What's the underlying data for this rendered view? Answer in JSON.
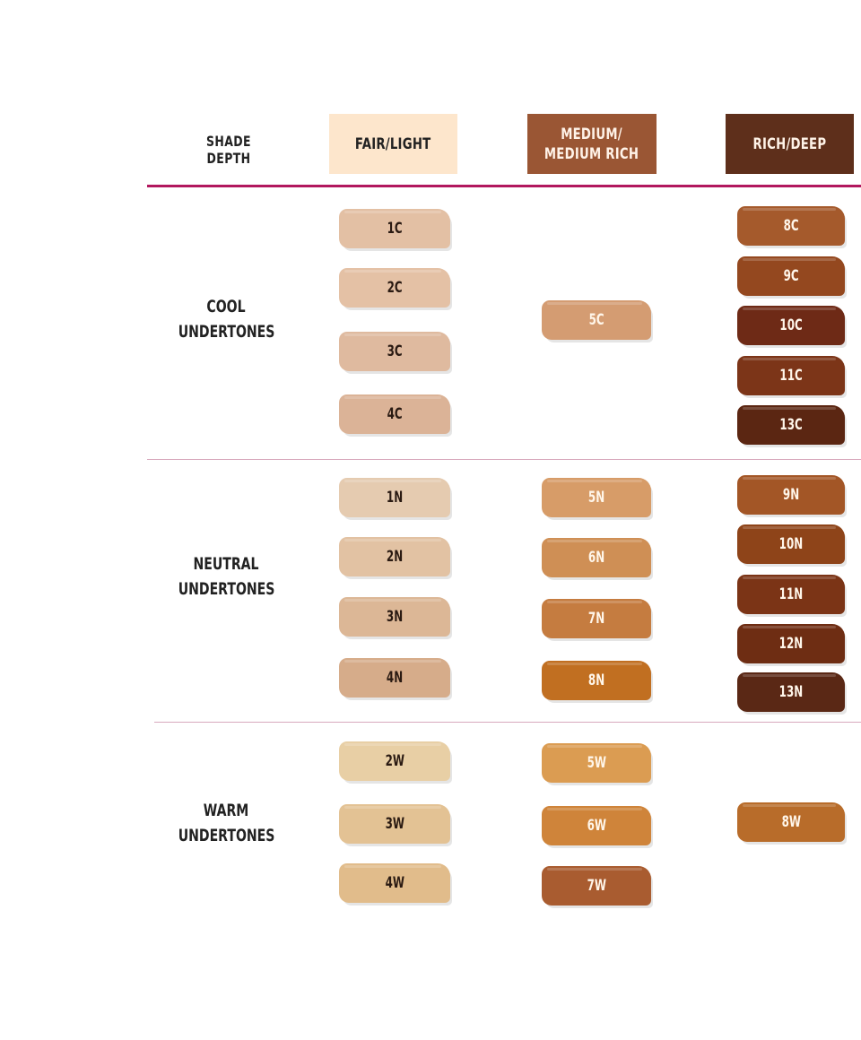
{
  "header": {
    "shade_depth_label": "SHADE DEPTH",
    "columns": [
      {
        "label": "FAIR/LIGHT",
        "bg": "#fde6cc",
        "color": "#222222"
      },
      {
        "label": "MEDIUM/\nMEDIUM RICH",
        "bg": "#9a5634",
        "color": "#fff3e8"
      },
      {
        "label": "RICH/DEEP",
        "bg": "#5e2f1b",
        "color": "#fff3e8"
      }
    ]
  },
  "rows": {
    "cool": {
      "label": "COOL\nUNDERTONES"
    },
    "neutral": {
      "label": "NEUTRAL\nUNDERTONES"
    },
    "warm": {
      "label": "WARM\nUNDERTONES"
    }
  },
  "swatches": {
    "cool": {
      "fair": [
        {
          "name": "1C",
          "color": "#e3c0a4"
        },
        {
          "name": "2C",
          "color": "#e4c1a5"
        },
        {
          "name": "3C",
          "color": "#dfba9f"
        },
        {
          "name": "4C",
          "color": "#dbb397"
        }
      ],
      "medium": [
        {
          "name": "5C",
          "color": "#d49c72"
        }
      ],
      "rich": [
        {
          "name": "8C",
          "color": "#a55a2c"
        },
        {
          "name": "9C",
          "color": "#94481f"
        },
        {
          "name": "10C",
          "color": "#6e2a16"
        },
        {
          "name": "11C",
          "color": "#7c3518"
        },
        {
          "name": "13C",
          "color": "#5b2612"
        }
      ]
    },
    "neutral": {
      "fair": [
        {
          "name": "1N",
          "color": "#e5cbb0"
        },
        {
          "name": "2N",
          "color": "#e2c2a3"
        },
        {
          "name": "3N",
          "color": "#dcb796"
        },
        {
          "name": "4N",
          "color": "#d6ac8a"
        }
      ],
      "medium": [
        {
          "name": "5N",
          "color": "#d79c68"
        },
        {
          "name": "6N",
          "color": "#cf8f55"
        },
        {
          "name": "7N",
          "color": "#c57c40"
        },
        {
          "name": "8N",
          "color": "#c16f21"
        }
      ],
      "rich": [
        {
          "name": "9N",
          "color": "#a35626"
        },
        {
          "name": "10N",
          "color": "#8e4419"
        },
        {
          "name": "11N",
          "color": "#7b3416"
        },
        {
          "name": "12N",
          "color": "#6e2d13"
        },
        {
          "name": "13N",
          "color": "#5a2815"
        }
      ]
    },
    "warm": {
      "fair": [
        {
          "name": "2W",
          "color": "#e8cfa5"
        },
        {
          "name": "3W",
          "color": "#e3c294"
        },
        {
          "name": "4W",
          "color": "#e1bc8b"
        }
      ],
      "medium": [
        {
          "name": "5W",
          "color": "#db9c52"
        },
        {
          "name": "6W",
          "color": "#cf843a"
        },
        {
          "name": "7W",
          "color": "#a95c30"
        }
      ],
      "rich": [
        {
          "name": "8W",
          "color": "#b86c2a"
        }
      ]
    }
  }
}
